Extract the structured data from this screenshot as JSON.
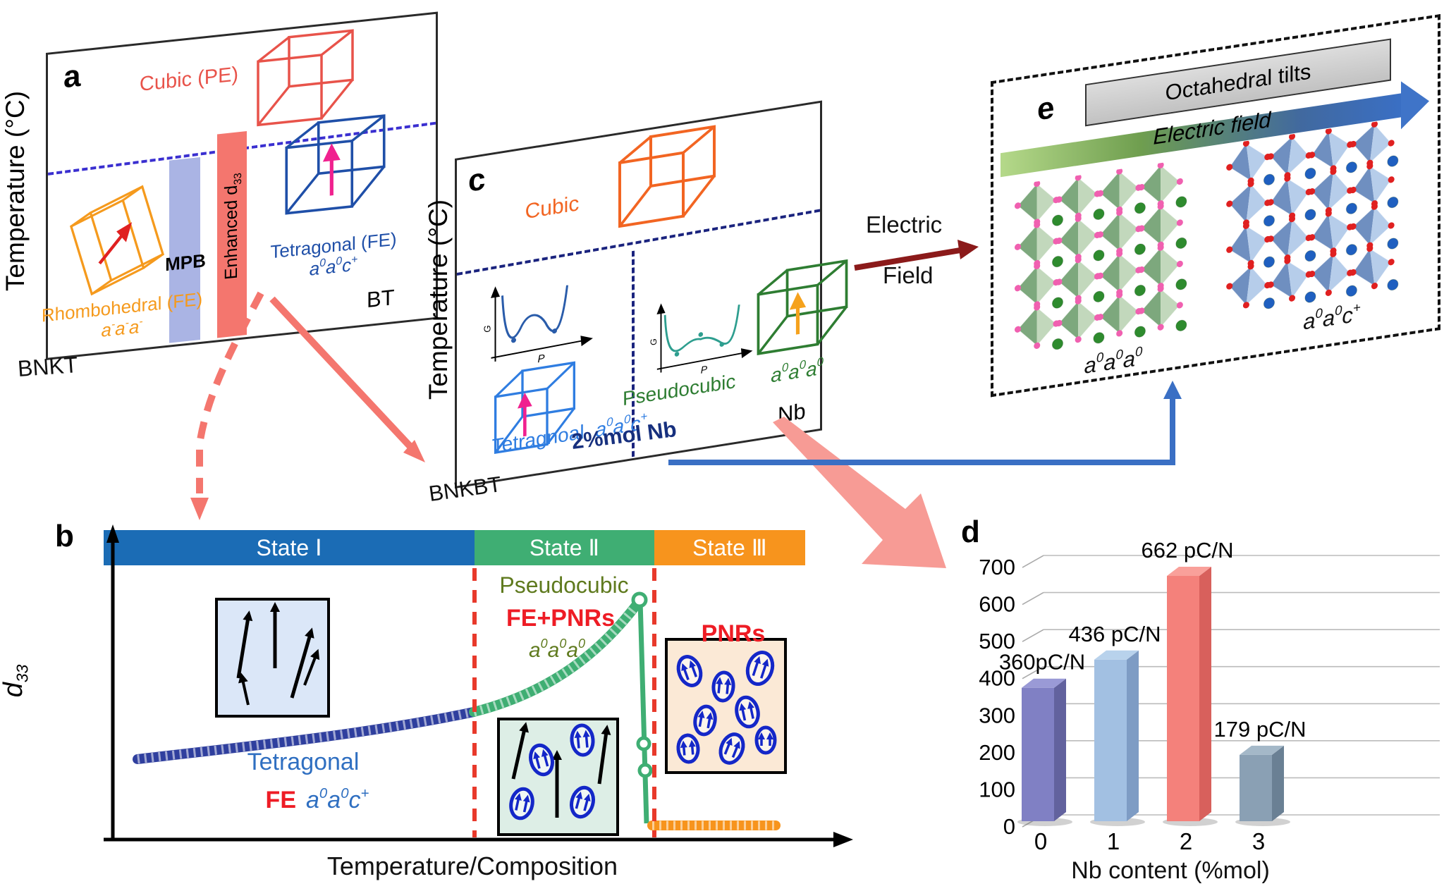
{
  "panel_a": {
    "label": "a",
    "y_axis": "Temperature (°C)",
    "x_left": "BNKT",
    "x_right": "BT",
    "cubic": "Cubic (PE)",
    "rhombohedral": "Rhombohedral (FE)",
    "rhombohedral_tilt_html": "a<sup>-</sup>a<sup>-</sup>a<sup>-</sup>",
    "mpb": "MPB",
    "enhanced_html": "Enhanced d<sub>33</sub>",
    "tetragonal": "Tetragonal (FE)",
    "tetragonal_tilt_html": "a<sup>0</sup>a<sup>0</sup>c<sup>+</sup>"
  },
  "panel_c": {
    "label": "c",
    "y_axis": "Temperature (°C)",
    "x_left": "BNKBT",
    "x_right": "Nb",
    "x_marker": "2%mol Nb",
    "cubic": "Cubic",
    "tetragonal": "Tetragnoal",
    "tetragonal_tilt_html": "a<sup>0</sup>a<sup>0</sup>c<sup>+</sup>",
    "pseudocubic": "Pseudocubic",
    "pseudocubic_tilt_html": "a<sup>0</sup>a<sup>0</sup>a<sup>0</sup>",
    "g_label": "G",
    "p_label": "P"
  },
  "connector": {
    "electric_line1": "Electric",
    "electric_line2": "Field"
  },
  "panel_e": {
    "label": "e",
    "octahedral_tilts": "Octahedral tilts",
    "electric_field": "Electric field",
    "left_tilt_html": "a<sup>0</sup>a<sup>0</sup>a<sup>0</sup>",
    "right_tilt_html": "a<sup>0</sup>a<sup>0</sup>c<sup>+</sup>"
  },
  "panel_b": {
    "label": "b",
    "states": [
      {
        "label": "State Ⅰ",
        "color": "#1b6cb5"
      },
      {
        "label": "State Ⅱ",
        "color": "#3fae73"
      },
      {
        "label": "State Ⅲ",
        "color": "#f7941d"
      }
    ],
    "y_axis_html": "d<sub>33</sub>",
    "x_axis": "Temperature/Composition",
    "pseudocubic": "Pseudocubic",
    "fe_pnrs": "FE+PNRs",
    "state2_tilt_html": "a<sup>0</sup>a<sup>0</sup>a<sup>0</sup>",
    "pnrs": "PNRs",
    "tetragonal": "Tetragonal",
    "fe": "FE",
    "state1_tilt_html": "a<sup>0</sup>a<sup>0</sup>c<sup>+</sup>"
  },
  "panel_d": {
    "label": "d"
  },
  "chart_data": {
    "type": "bar",
    "title": "",
    "xlabel": "Nb content (%mol)",
    "ylabel": "",
    "categories": [
      "0",
      "1",
      "2",
      "3"
    ],
    "values": [
      360,
      436,
      662,
      179
    ],
    "value_labels": [
      "360pC/N",
      "436 pC/N",
      "662 pC/N",
      "179 pC/N"
    ],
    "yticks": [
      0,
      100,
      200,
      300,
      400,
      500,
      600,
      700
    ],
    "ylim": [
      0,
      700
    ],
    "grid": true,
    "legend": false,
    "bar_colors": [
      "#8080c4",
      "#a2c0e2",
      "#f4817b",
      "#8aa0b4"
    ],
    "bar_side_colors": [
      "#62629e",
      "#7e9cc4",
      "#d8605c",
      "#6a8094"
    ],
    "bar_top_colors": [
      "#9a9ad6",
      "#b8d2ec",
      "#f9a09a",
      "#a4b8c8"
    ]
  },
  "colors": {
    "a_cubic": "#e8534a",
    "a_rhombo": "#f59a1d",
    "a_tetra": "#1f4fa8",
    "a_mpb_band": "#aab4e4",
    "a_enh_band": "#f4766e",
    "a_boundary": "#3a2fd0",
    "c_cubic": "#f26522",
    "c_tetra": "#2f7de1",
    "c_pseudo": "#2e7d32",
    "c_boundary": "#1a237e",
    "marker_navy": "#17307e",
    "curve_blue": "#2f3f9e",
    "curve_green": "#3fae73",
    "curve_orange": "#f7941d",
    "dashed_red": "#e8392b",
    "pink_arrow": "#f4766e",
    "dark_red_arrow": "#8b1a1a",
    "blue_connector": "#3a6fc4"
  }
}
